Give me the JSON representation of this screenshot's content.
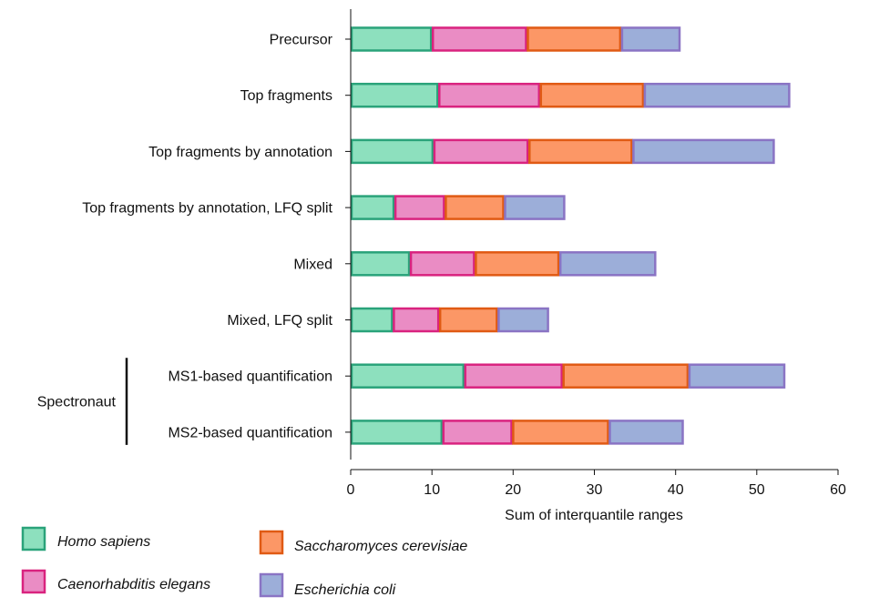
{
  "chart_data": {
    "type": "bar",
    "stacked": true,
    "orientation": "horizontal",
    "title": "",
    "xlabel": "Sum of interquantile ranges",
    "ylabel": "",
    "xlim": [
      0,
      60
    ],
    "xticks": [
      "0",
      "10",
      "20",
      "30",
      "40",
      "50",
      "60"
    ],
    "categories": [
      "Precursor",
      "Top fragments",
      "Top fragments by annotation",
      "Top fragments by annotation, LFQ split",
      "Mixed",
      "Mixed, LFQ split",
      "MS1-based quantification",
      "MS2-based quantification"
    ],
    "group_label": "Spectronaut",
    "group_members": [
      "MS1-based quantification",
      "MS2-based quantification"
    ],
    "series": [
      {
        "name": "Homo sapiens",
        "fill": "#8de0be",
        "stroke": "#2aa37a",
        "values": [
          10.0,
          10.8,
          10.2,
          5.4,
          7.3,
          5.2,
          14.0,
          11.3
        ]
      },
      {
        "name": "Caenorhabditis elegans",
        "fill": "#ea8cc4",
        "stroke": "#d9237f",
        "values": [
          11.7,
          12.5,
          11.7,
          6.2,
          8.0,
          5.7,
          12.1,
          8.6
        ]
      },
      {
        "name": "Saccharomyces cerevisiae",
        "fill": "#fc9766",
        "stroke": "#e05a14",
        "values": [
          11.6,
          12.8,
          12.8,
          7.3,
          10.4,
          7.2,
          15.5,
          11.9
        ]
      },
      {
        "name": "Escherichia coli",
        "fill": "#9caed9",
        "stroke": "#8a74c4",
        "values": [
          7.3,
          18.0,
          17.5,
          7.5,
          11.9,
          6.3,
          11.9,
          9.2
        ]
      }
    ],
    "legend": {
      "placement": "bottom-left",
      "order": [
        "Homo sapiens",
        "Saccharomyces cerevisiae",
        "Caenorhabditis elegans",
        "Escherichia coli"
      ]
    },
    "grid": false
  }
}
